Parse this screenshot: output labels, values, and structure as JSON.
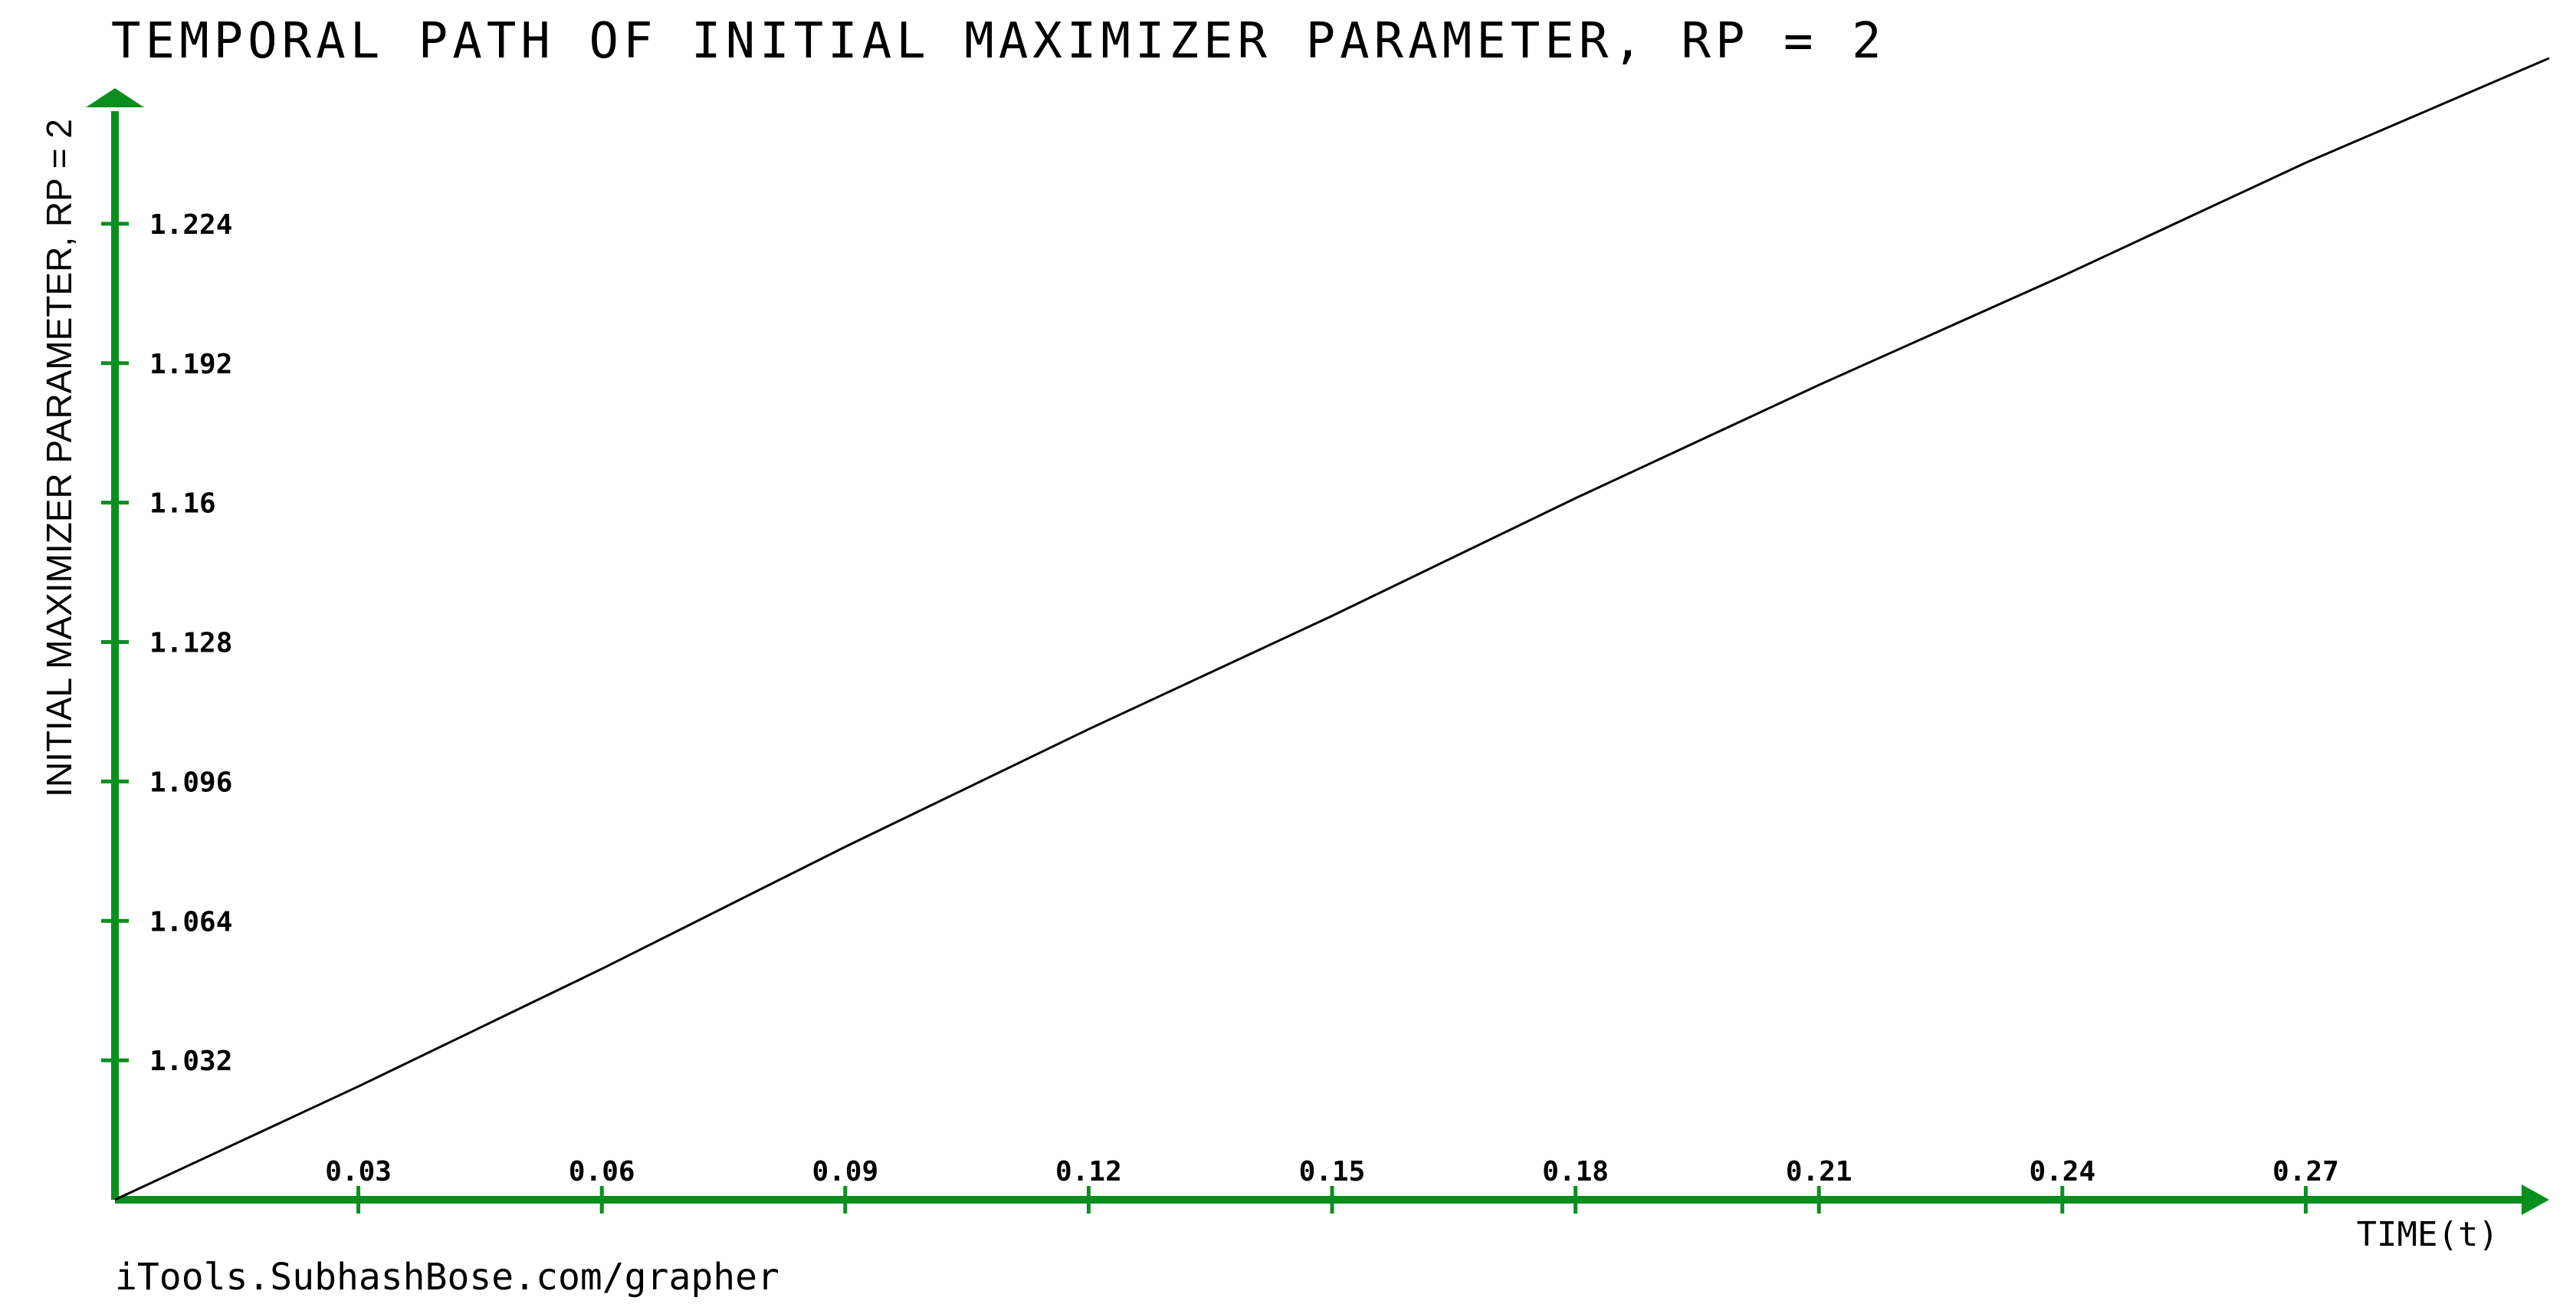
{
  "chart_data": {
    "type": "line",
    "title": "TEMPORAL PATH OF INITIAL MAXIMIZER PARAMETER, RP = 2",
    "xlabel": "TIME(t)",
    "ylabel": "INITIAL MAXIMIZER PARAMETER, RP = 2",
    "xlim": [
      0,
      0.3
    ],
    "ylim": [
      1.0,
      1.256
    ],
    "x_ticks": [
      0.03,
      0.06,
      0.09,
      0.12,
      0.15,
      0.18,
      0.21,
      0.24,
      0.27
    ],
    "x_tick_labels": [
      "0.03",
      "0.06",
      "0.09",
      "0.12",
      "0.15",
      "0.18",
      "0.21",
      "0.24",
      "0.27"
    ],
    "y_ticks": [
      1.032,
      1.064,
      1.096,
      1.128,
      1.16,
      1.192,
      1.224
    ],
    "y_tick_labels": [
      "1.032",
      "1.064",
      "1.096",
      "1.128",
      "1.16",
      "1.192",
      "1.224"
    ],
    "grid": false,
    "series": [
      {
        "x": [
          0,
          0.03,
          0.06,
          0.09,
          0.12,
          0.15,
          0.18,
          0.21,
          0.24,
          0.27,
          0.3
        ],
        "values": [
          1.0,
          1.026,
          1.053,
          1.081,
          1.108,
          1.134,
          1.161,
          1.187,
          1.212,
          1.238,
          1.262
        ]
      }
    ],
    "colors": {
      "axis": "#0a8f1e",
      "line": "#000000"
    }
  },
  "footer": "iTools.SubhashBose.com/grapher"
}
